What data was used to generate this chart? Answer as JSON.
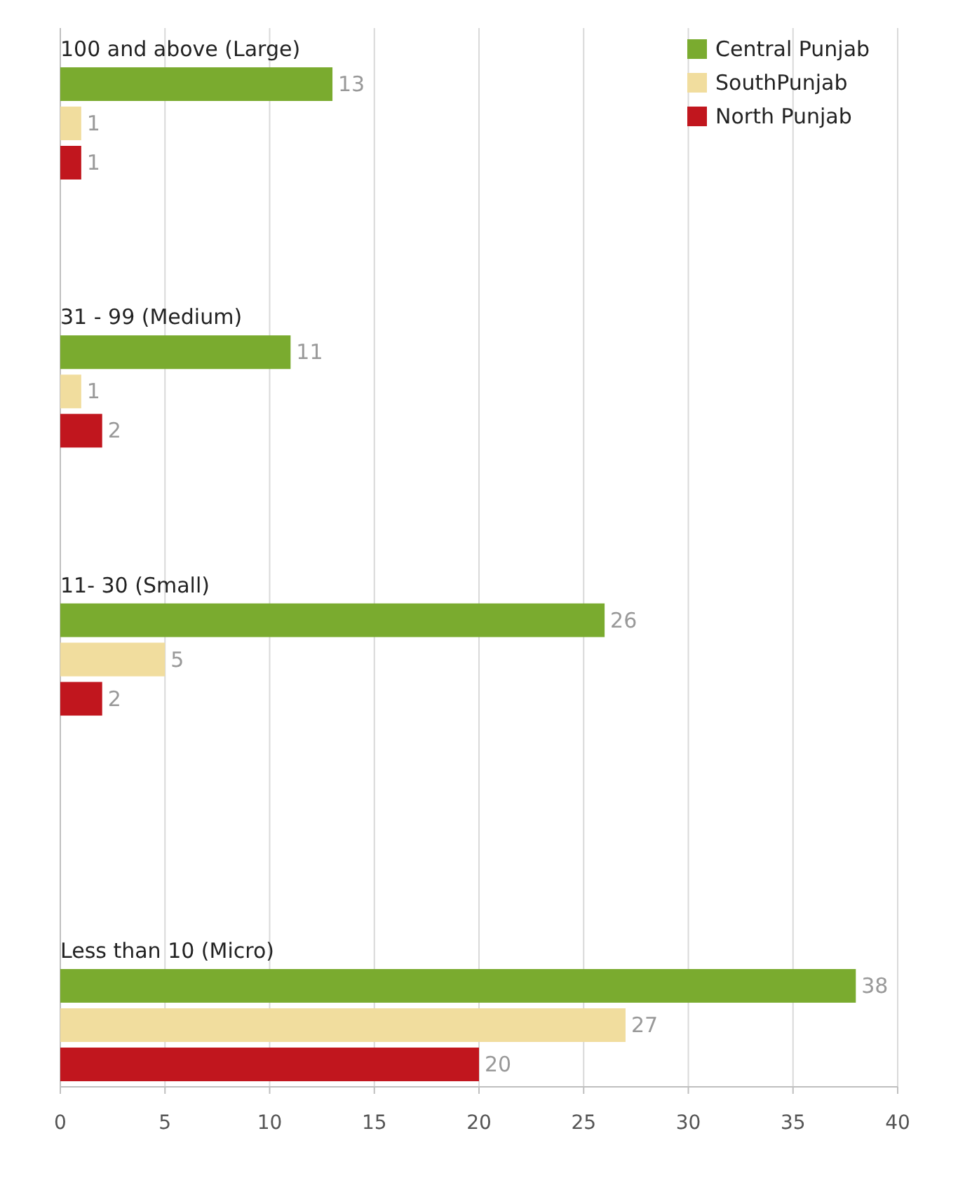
{
  "chart_data": {
    "type": "bar",
    "orientation": "horizontal",
    "categories": [
      "100 and above (Large)",
      "31 - 99 (Medium)",
      "11- 30 (Small)",
      "Less than 10 (Micro)"
    ],
    "series": [
      {
        "name": "Central Punjab",
        "color": "#7aab2f",
        "values": [
          13,
          11,
          26,
          38
        ]
      },
      {
        "name": "SouthPunjab",
        "color": "#f1dd9e",
        "values": [
          1,
          1,
          5,
          27
        ]
      },
      {
        "name": "North Punjab",
        "color": "#c1161e",
        "values": [
          1,
          2,
          2,
          20
        ]
      }
    ],
    "xlim": [
      0,
      40
    ],
    "xticks": [
      0,
      5,
      10,
      15,
      20,
      25,
      30,
      35,
      40
    ],
    "grid": "x",
    "legend": "top right",
    "data_labels": true
  }
}
